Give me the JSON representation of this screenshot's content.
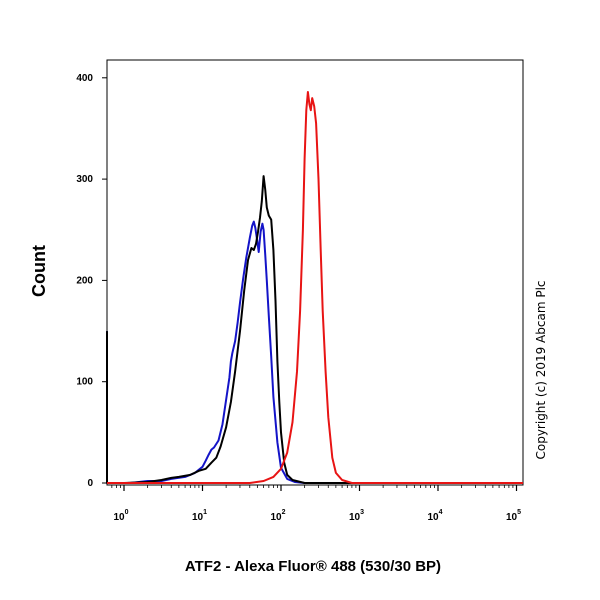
{
  "chart_data": {
    "type": "line",
    "title": "",
    "xlabel": "ATF2 - Alexa Fluor® 488 (530/30 BP)",
    "ylabel": "Count",
    "x_scale": "log",
    "xlim": [
      0.5,
      250000
    ],
    "ylim": [
      0,
      420
    ],
    "grid": false,
    "legend": "none",
    "y_ticks": [
      0,
      100,
      200,
      300,
      400
    ],
    "y_tick_labels": [
      "0",
      "100",
      "200",
      "300",
      "400"
    ],
    "x_ticks": [
      1,
      10,
      100,
      1000,
      10000,
      100000
    ],
    "x_tick_labels": [
      {
        "base": "10",
        "exp": "0"
      },
      {
        "base": "10",
        "exp": "1"
      },
      {
        "base": "10",
        "exp": "2"
      },
      {
        "base": "10",
        "exp": "3"
      },
      {
        "base": "10",
        "exp": "4"
      },
      {
        "base": "10",
        "exp": "5"
      }
    ],
    "annotation": "Copyright (c) 2019 Abcam Plc",
    "series": [
      {
        "color": "#1414c8",
        "points": [
          [
            0.5,
            150
          ],
          [
            0.52,
            40
          ],
          [
            0.55,
            5
          ],
          [
            0.6,
            0
          ],
          [
            0.8,
            0
          ],
          [
            1.2,
            0
          ],
          [
            2,
            2
          ],
          [
            3,
            2
          ],
          [
            4,
            4
          ],
          [
            6,
            6
          ],
          [
            8,
            10
          ],
          [
            10,
            16
          ],
          [
            11,
            22
          ],
          [
            12,
            28
          ],
          [
            13,
            33
          ],
          [
            14,
            35
          ],
          [
            16,
            42
          ],
          [
            18,
            58
          ],
          [
            20,
            82
          ],
          [
            22,
            104
          ],
          [
            23,
            120
          ],
          [
            24,
            128
          ],
          [
            26,
            140
          ],
          [
            28,
            158
          ],
          [
            30,
            178
          ],
          [
            33,
            202
          ],
          [
            36,
            222
          ],
          [
            40,
            242
          ],
          [
            43,
            254
          ],
          [
            45,
            258
          ],
          [
            47,
            252
          ],
          [
            50,
            238
          ],
          [
            52,
            228
          ],
          [
            55,
            248
          ],
          [
            58,
            256
          ],
          [
            60,
            250
          ],
          [
            63,
            226
          ],
          [
            66,
            200
          ],
          [
            70,
            165
          ],
          [
            75,
            125
          ],
          [
            80,
            85
          ],
          [
            90,
            40
          ],
          [
            100,
            15
          ],
          [
            120,
            4
          ],
          [
            150,
            1
          ],
          [
            200,
            0
          ],
          [
            1000,
            0
          ],
          [
            250000,
            0
          ]
        ]
      },
      {
        "color": "#000000",
        "points": [
          [
            0.5,
            150
          ],
          [
            0.52,
            40
          ],
          [
            0.55,
            5
          ],
          [
            0.6,
            0
          ],
          [
            1,
            0
          ],
          [
            2,
            1
          ],
          [
            3,
            3
          ],
          [
            4,
            5
          ],
          [
            5,
            6
          ],
          [
            7,
            8
          ],
          [
            9,
            12
          ],
          [
            11,
            14
          ],
          [
            13,
            20
          ],
          [
            15,
            25
          ],
          [
            17,
            36
          ],
          [
            20,
            55
          ],
          [
            23,
            80
          ],
          [
            26,
            110
          ],
          [
            30,
            150
          ],
          [
            34,
            190
          ],
          [
            38,
            220
          ],
          [
            42,
            232
          ],
          [
            45,
            230
          ],
          [
            48,
            236
          ],
          [
            51,
            248
          ],
          [
            54,
            262
          ],
          [
            57,
            278
          ],
          [
            60,
            303
          ],
          [
            63,
            290
          ],
          [
            66,
            272
          ],
          [
            70,
            264
          ],
          [
            75,
            260
          ],
          [
            80,
            230
          ],
          [
            85,
            180
          ],
          [
            90,
            120
          ],
          [
            95,
            80
          ],
          [
            100,
            50
          ],
          [
            110,
            20
          ],
          [
            120,
            8
          ],
          [
            140,
            3
          ],
          [
            200,
            0
          ],
          [
            250000,
            0
          ]
        ]
      },
      {
        "color": "#e81414",
        "points": [
          [
            0.6,
            0
          ],
          [
            40,
            0
          ],
          [
            60,
            2
          ],
          [
            80,
            6
          ],
          [
            100,
            14
          ],
          [
            120,
            30
          ],
          [
            140,
            60
          ],
          [
            160,
            110
          ],
          [
            175,
            170
          ],
          [
            190,
            250
          ],
          [
            200,
            320
          ],
          [
            210,
            368
          ],
          [
            220,
            386
          ],
          [
            230,
            374
          ],
          [
            240,
            368
          ],
          [
            250,
            380
          ],
          [
            265,
            372
          ],
          [
            280,
            355
          ],
          [
            300,
            300
          ],
          [
            320,
            230
          ],
          [
            340,
            170
          ],
          [
            370,
            110
          ],
          [
            400,
            65
          ],
          [
            450,
            25
          ],
          [
            500,
            10
          ],
          [
            600,
            3
          ],
          [
            800,
            0
          ],
          [
            250000,
            0
          ]
        ]
      }
    ]
  }
}
